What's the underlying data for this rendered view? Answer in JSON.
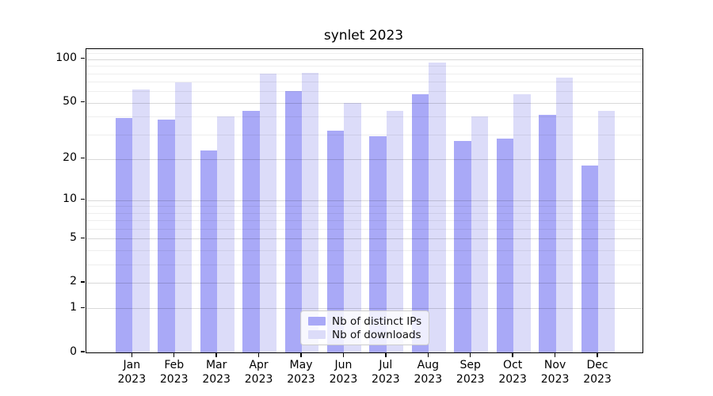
{
  "chart_data": {
    "type": "bar",
    "title": "synlet 2023",
    "categories": [
      "Jan 2023",
      "Feb 2023",
      "Mar 2023",
      "Apr 2023",
      "May 2023",
      "Jun 2023",
      "Jul 2023",
      "Aug 2023",
      "Sep 2023",
      "Oct 2023",
      "Nov 2023",
      "Dec 2023"
    ],
    "series": [
      {
        "name": "Nb of distinct IPs",
        "color": "#a9a9f7",
        "values": [
          39,
          38,
          23,
          44,
          60,
          32,
          29,
          57,
          27,
          28,
          41,
          18
        ]
      },
      {
        "name": "Nb of downloads",
        "color": "#dcdcf9",
        "values": [
          62,
          69,
          40,
          80,
          81,
          50,
          44,
          95,
          40,
          57,
          75,
          44
        ]
      }
    ],
    "xlabel": "",
    "ylabel": "",
    "yscale": "log1p",
    "ylim": [
      0,
      121
    ],
    "yticks": [
      0,
      1,
      2,
      5,
      10,
      20,
      50,
      100
    ],
    "yticks_minor": [
      3,
      4,
      6,
      7,
      8,
      9,
      30,
      40,
      60,
      70,
      80,
      90,
      110,
      120
    ],
    "grid": "both",
    "legend_position": "lower center"
  }
}
